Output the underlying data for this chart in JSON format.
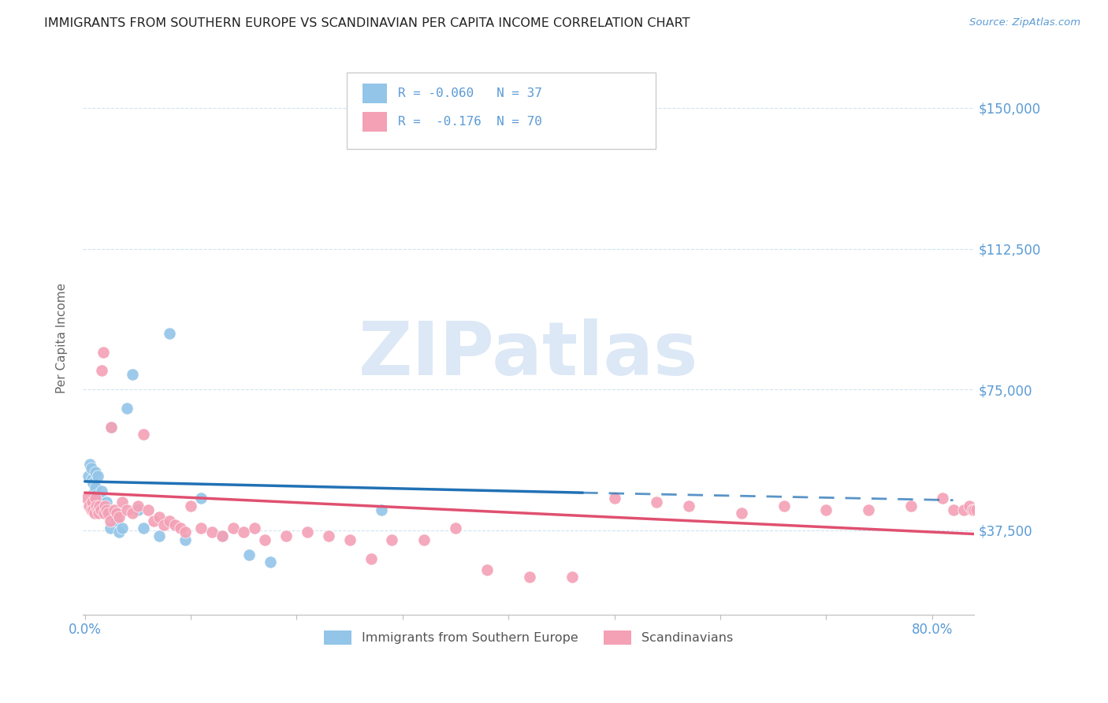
{
  "title": "IMMIGRANTS FROM SOUTHERN EUROPE VS SCANDINAVIAN PER CAPITA INCOME CORRELATION CHART",
  "source": "Source: ZipAtlas.com",
  "ylabel": "Per Capita Income",
  "ytick_labels": [
    "$37,500",
    "$75,000",
    "$112,500",
    "$150,000"
  ],
  "ytick_values": [
    37500,
    75000,
    112500,
    150000
  ],
  "ymin": 15000,
  "ymax": 162500,
  "xmin": -0.002,
  "xmax": 0.84,
  "legend_label1": "Immigrants from Southern Europe",
  "legend_label2": "Scandinavians",
  "blue_color": "#92c5e8",
  "pink_color": "#f4a0b5",
  "blue_line_color": "#2171b5",
  "pink_line_color": "#e05070",
  "axis_color": "#5b9bd5",
  "grid_color": "#d0e4f0",
  "watermark_text": "ZIPatlas",
  "blue_scatter_x": [
    0.003,
    0.005,
    0.006,
    0.007,
    0.008,
    0.009,
    0.01,
    0.01,
    0.011,
    0.012,
    0.013,
    0.014,
    0.015,
    0.016,
    0.017,
    0.018,
    0.019,
    0.02,
    0.022,
    0.024,
    0.025,
    0.028,
    0.03,
    0.032,
    0.035,
    0.04,
    0.045,
    0.05,
    0.055,
    0.07,
    0.08,
    0.095,
    0.11,
    0.13,
    0.155,
    0.175,
    0.28
  ],
  "blue_scatter_y": [
    52000,
    55000,
    54000,
    51000,
    50000,
    48000,
    53000,
    49000,
    47000,
    52000,
    46000,
    44000,
    45000,
    48000,
    44000,
    43000,
    42000,
    45000,
    43000,
    38000,
    65000,
    42000,
    40000,
    37000,
    38000,
    70000,
    79000,
    43000,
    38000,
    36000,
    90000,
    35000,
    46000,
    36000,
    31000,
    29000,
    43000
  ],
  "pink_scatter_x": [
    0.002,
    0.004,
    0.006,
    0.007,
    0.008,
    0.009,
    0.01,
    0.011,
    0.012,
    0.013,
    0.014,
    0.015,
    0.016,
    0.017,
    0.018,
    0.019,
    0.02,
    0.022,
    0.024,
    0.025,
    0.028,
    0.03,
    0.032,
    0.035,
    0.04,
    0.045,
    0.05,
    0.055,
    0.06,
    0.065,
    0.07,
    0.075,
    0.08,
    0.085,
    0.09,
    0.095,
    0.1,
    0.11,
    0.12,
    0.13,
    0.14,
    0.15,
    0.16,
    0.17,
    0.19,
    0.21,
    0.23,
    0.25,
    0.27,
    0.29,
    0.32,
    0.35,
    0.38,
    0.42,
    0.46,
    0.5,
    0.54,
    0.57,
    0.62,
    0.66,
    0.7,
    0.74,
    0.78,
    0.81,
    0.82,
    0.83,
    0.835,
    0.838,
    0.84,
    0.842
  ],
  "pink_scatter_y": [
    46000,
    44000,
    43000,
    45000,
    43000,
    42000,
    46000,
    44000,
    43000,
    42000,
    44000,
    43000,
    80000,
    85000,
    42000,
    44000,
    43000,
    42000,
    40000,
    65000,
    43000,
    42000,
    41000,
    45000,
    43000,
    42000,
    44000,
    63000,
    43000,
    40000,
    41000,
    39000,
    40000,
    39000,
    38000,
    37000,
    44000,
    38000,
    37000,
    36000,
    38000,
    37000,
    38000,
    35000,
    36000,
    37000,
    36000,
    35000,
    30000,
    35000,
    35000,
    38000,
    27000,
    25000,
    25000,
    46000,
    45000,
    44000,
    42000,
    44000,
    43000,
    43000,
    44000,
    46000,
    43000,
    43000,
    44000,
    43000,
    43000,
    43000
  ]
}
